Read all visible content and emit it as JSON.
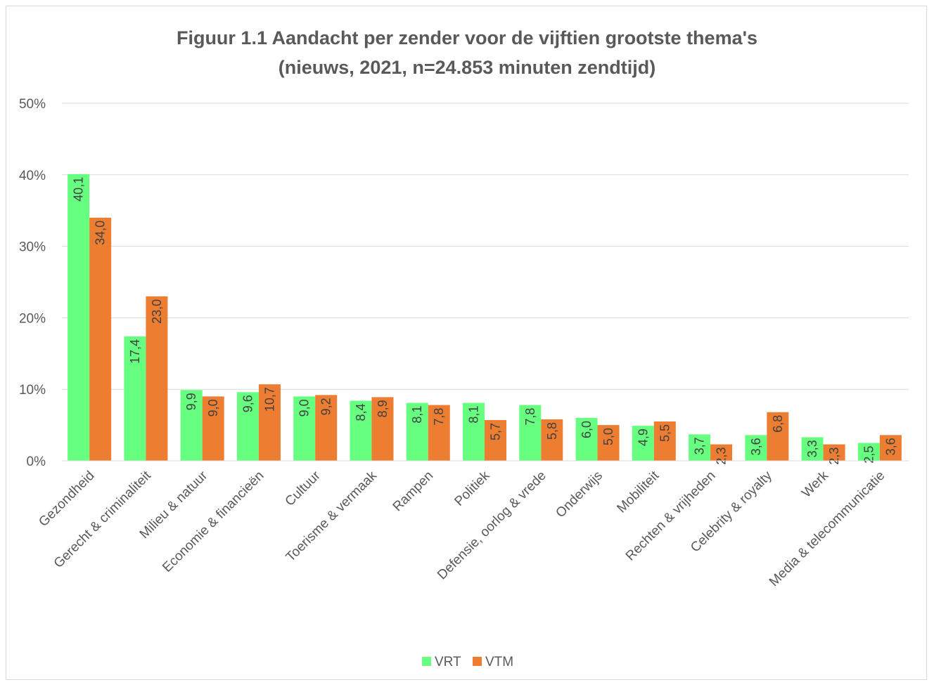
{
  "chart_data": {
    "type": "bar",
    "title_lines": [
      "Figuur 1.1 Aandacht per zender voor de vijftien grootste thema's",
      "(nieuws, 2021, n=24.853 minuten zendtijd)"
    ],
    "xlabel": "",
    "ylabel": "",
    "ylim": [
      0,
      50
    ],
    "y_ticks": [
      0,
      10,
      20,
      30,
      40,
      50
    ],
    "y_tick_labels": [
      "0%",
      "10%",
      "20%",
      "30%",
      "40%",
      "50%"
    ],
    "grid": true,
    "legend_position": "bottom",
    "categories": [
      "Gezondheid",
      "Gerecht & criminaliteit",
      "Milieu & natuur",
      "Economie & financieën",
      "Cultuur",
      "Toerisme & vermaak",
      "Rampen",
      "Politiek",
      "Defensie, oorlog & vrede",
      "Onderwijs",
      "Mobiliteit",
      "Rechten & vrijheden",
      "Celebrity & royalty",
      "Werk",
      "Media & telecommunicatie"
    ],
    "series": [
      {
        "name": "VRT",
        "color": "#66ff80",
        "values": [
          40.1,
          17.4,
          9.9,
          9.6,
          9.0,
          8.4,
          8.1,
          8.1,
          7.8,
          6.0,
          4.9,
          3.7,
          3.6,
          3.3,
          2.5
        ],
        "labels": [
          "40,1",
          "17,4",
          "9,9",
          "9,6",
          "9,0",
          "8,4",
          "8,1",
          "8,1",
          "7,8",
          "6,0",
          "4,9",
          "3,7",
          "3,6",
          "3,3",
          "2,5"
        ]
      },
      {
        "name": "VTM",
        "color": "#ed7d31",
        "values": [
          34.0,
          23.0,
          9.0,
          10.7,
          9.2,
          8.9,
          7.8,
          5.7,
          5.8,
          5.0,
          5.5,
          2.3,
          6.8,
          2.3,
          3.6
        ],
        "labels": [
          "34,0",
          "23,0",
          "9,0",
          "10,7",
          "9,2",
          "8,9",
          "7,8",
          "5,7",
          "5,8",
          "5,0",
          "5,5",
          "2,3",
          "6,8",
          "2,3",
          "3,6"
        ]
      }
    ]
  }
}
